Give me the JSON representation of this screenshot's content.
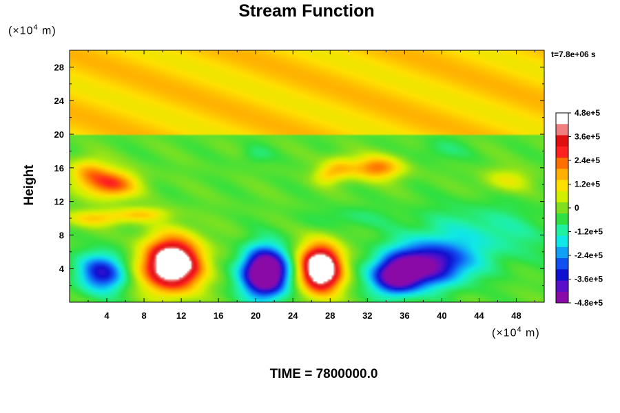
{
  "chart_data": {
    "type": "heatmap",
    "title": "Stream Function",
    "xlabel": "",
    "ylabel": "Height",
    "x_unit_prefix": "(×10",
    "x_unit_exp": "4",
    "x_unit_suffix": " m)",
    "y_unit_prefix": "(×10",
    "y_unit_exp": "4",
    "y_unit_suffix": " m)",
    "xlim": [
      0,
      51
    ],
    "ylim": [
      0,
      30
    ],
    "x_ticks": [
      "4",
      "8",
      "12",
      "16",
      "20",
      "24",
      "28",
      "32",
      "36",
      "40",
      "44",
      "48"
    ],
    "y_ticks": [
      "4",
      "8",
      "12",
      "16",
      "20",
      "24",
      "28"
    ],
    "x_tick_values": [
      4,
      8,
      12,
      16,
      20,
      24,
      28,
      32,
      36,
      40,
      44,
      48
    ],
    "y_tick_values": [
      4,
      8,
      12,
      16,
      20,
      24,
      28
    ],
    "colorbar_labels": [
      "4.8e+5",
      "3.6e+5",
      "2.4e+5",
      "1.2e+5",
      "0",
      "-1.2e+5",
      "-2.4e+5",
      "-3.6e+5",
      "-4.8e+5"
    ],
    "colorbar_values": [
      480000,
      360000,
      240000,
      120000,
      0,
      -120000,
      -240000,
      -360000,
      -480000
    ],
    "colorbar_range": [
      -480000,
      480000
    ],
    "colormap": [
      "#8a0aa8",
      "#5a10c8",
      "#1010d0",
      "#1050f0",
      "#10a0f8",
      "#10e8e8",
      "#20f0a0",
      "#30e040",
      "#80e020",
      "#d0f000",
      "#ffe000",
      "#ffb000",
      "#ff7000",
      "#ff2020",
      "#e01010",
      "#f08080",
      "#ffffff"
    ],
    "background_value": 0,
    "upper_band": {
      "y_range": [
        20,
        30
      ],
      "value": 180000
    },
    "features": [
      {
        "x": 3.5,
        "y": 3.5,
        "sx": 1.8,
        "sy": 1.6,
        "value": -360000
      },
      {
        "x": 11.0,
        "y": 4.5,
        "sx": 2.2,
        "sy": 2.2,
        "value": 700000
      },
      {
        "x": 21.0,
        "y": 3.5,
        "sx": 1.7,
        "sy": 2.0,
        "value": -700000
      },
      {
        "x": 27.0,
        "y": 4.0,
        "sx": 1.6,
        "sy": 2.0,
        "value": 700000
      },
      {
        "x": 35.0,
        "y": 3.0,
        "sx": 1.8,
        "sy": 1.5,
        "value": -450000
      },
      {
        "x": 38.5,
        "y": 4.5,
        "sx": 3.0,
        "sy": 1.8,
        "value": -450000
      },
      {
        "x": 4.5,
        "y": 14.0,
        "sx": 2.0,
        "sy": 1.2,
        "value": 320000
      },
      {
        "x": 2.0,
        "y": 15.5,
        "sx": 1.5,
        "sy": 1.2,
        "value": 200000
      },
      {
        "x": 33.0,
        "y": 16.0,
        "sx": 2.0,
        "sy": 1.0,
        "value": 280000
      },
      {
        "x": 29.0,
        "y": 16.0,
        "sx": 1.2,
        "sy": 1.0,
        "value": 160000
      },
      {
        "x": 27.5,
        "y": 15.0,
        "sx": 1.0,
        "sy": 0.8,
        "value": 120000
      },
      {
        "x": 3.0,
        "y": 10.0,
        "sx": 2.5,
        "sy": 0.7,
        "value": 180000
      },
      {
        "x": 8.0,
        "y": 10.5,
        "sx": 2.0,
        "sy": 0.6,
        "value": 150000
      },
      {
        "x": 47.0,
        "y": 14.5,
        "sx": 2.0,
        "sy": 1.0,
        "value": 120000
      },
      {
        "x": 44.0,
        "y": 8.0,
        "sx": 5.0,
        "sy": 2.5,
        "value": -120000
      },
      {
        "x": 30.0,
        "y": 10.0,
        "sx": 3.0,
        "sy": 1.0,
        "value": -60000
      },
      {
        "x": 40.0,
        "y": 18.0,
        "sx": 2.0,
        "sy": 1.0,
        "value": -60000
      },
      {
        "x": 20.0,
        "y": 17.5,
        "sx": 1.2,
        "sy": 0.8,
        "value": -60000
      }
    ],
    "grid": false,
    "legend": "colorbar-right"
  },
  "annotations": {
    "time_stamp": "t=7.8e+06 s",
    "footer": "TIME = 7800000.0"
  }
}
